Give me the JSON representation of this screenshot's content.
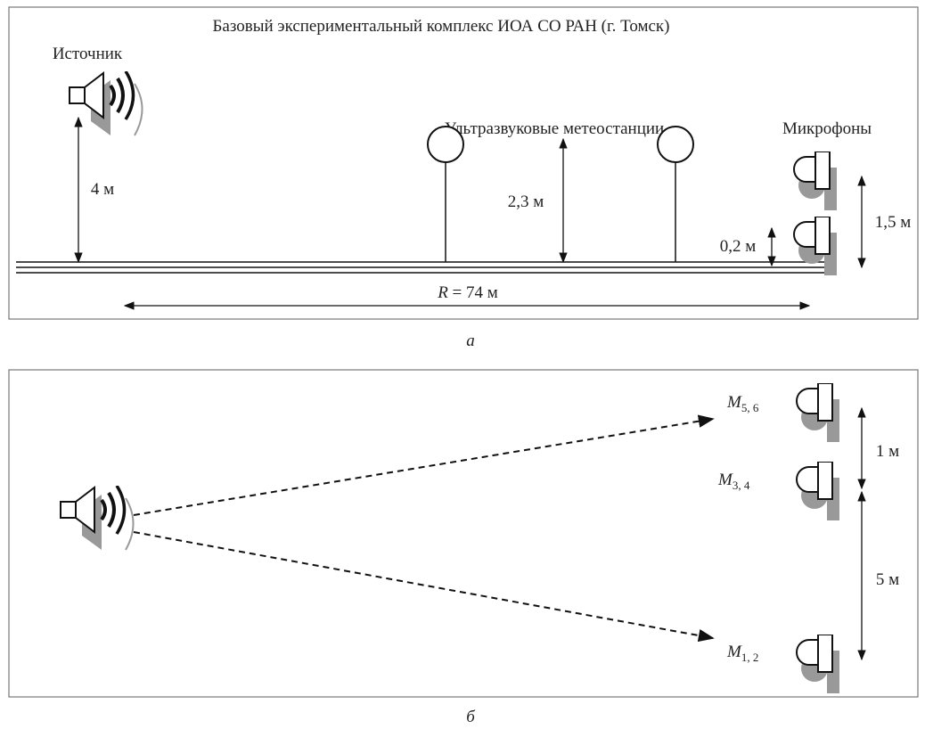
{
  "panel_a": {
    "title": "Базовый экспериментальный комплекс ИОА СО РАН (г. Томск)",
    "source_label": "Источник",
    "stations_label": "Ультразвуковые метеостанции",
    "microphones_label": "Микрофоны",
    "dimensions": {
      "source_height": "4 м",
      "station_height": "2,3 м",
      "mic_low": "0,2 м",
      "mic_high": "1,5 м"
    },
    "distance": {
      "symbol": "R",
      "text": "= 74 м"
    },
    "caption": "а"
  },
  "panel_b": {
    "microphones": [
      {
        "symbol": "M",
        "subscript": "5, 6"
      },
      {
        "symbol": "M",
        "subscript": "3, 4"
      },
      {
        "symbol": "M",
        "subscript": "1, 2"
      }
    ],
    "spacing": [
      "1 м",
      "5 м"
    ],
    "caption": "б"
  }
}
